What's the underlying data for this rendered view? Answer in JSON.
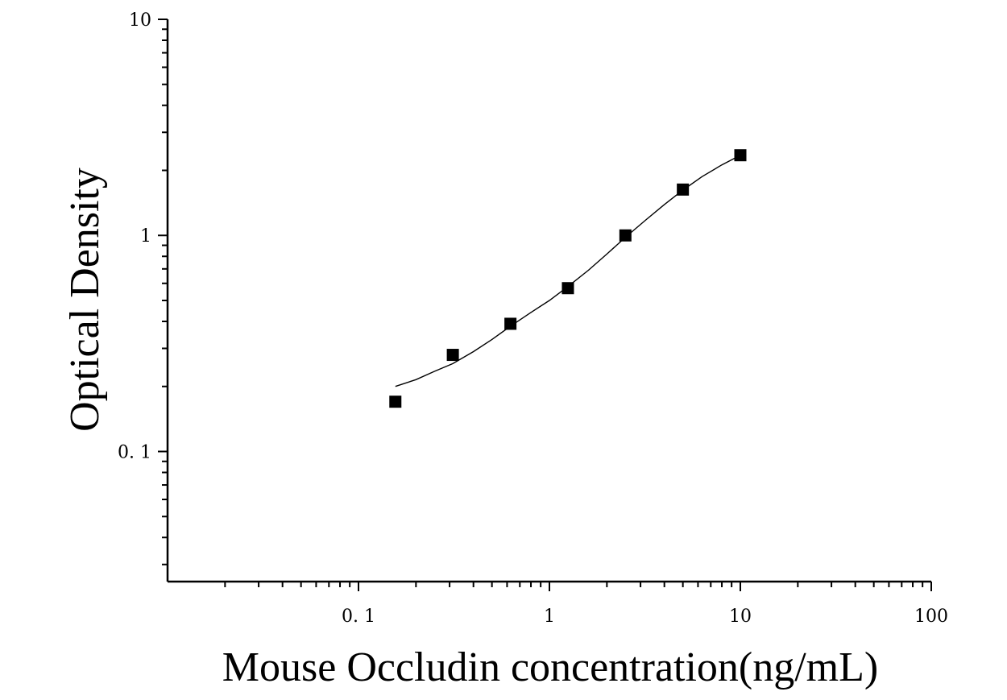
{
  "chart_data": {
    "type": "scatter",
    "title": "",
    "xlabel": "Mouse Occludin concentration(ng/mL)",
    "ylabel": "Optical Density",
    "x_scale": "log",
    "y_scale": "log",
    "xlim": [
      0.01,
      100
    ],
    "ylim": [
      0.025,
      10
    ],
    "x_ticks": [
      {
        "value": 0.1,
        "label": "0. 1"
      },
      {
        "value": 1,
        "label": "1"
      },
      {
        "value": 10,
        "label": "10"
      },
      {
        "value": 100,
        "label": "100"
      }
    ],
    "y_ticks": [
      {
        "value": 0.1,
        "label": "0. 1"
      },
      {
        "value": 1,
        "label": "1"
      },
      {
        "value": 10,
        "label": "10"
      }
    ],
    "grid": false,
    "legend": "none",
    "series": [
      {
        "marker": "square",
        "color": "#000000",
        "x": [
          0.156,
          0.312,
          0.625,
          1.25,
          2.5,
          5,
          10
        ],
        "y": [
          0.17,
          0.28,
          0.39,
          0.57,
          1.0,
          1.63,
          2.35
        ]
      }
    ],
    "fit_curve": {
      "style": "line",
      "color": "#000000",
      "x": [
        0.156,
        0.2,
        0.25,
        0.312,
        0.4,
        0.5,
        0.625,
        0.8,
        1.0,
        1.25,
        1.6,
        2.0,
        2.5,
        3.2,
        4.0,
        5.0,
        6.3,
        8.0,
        10.0
      ],
      "y": [
        0.2,
        0.215,
        0.235,
        0.255,
        0.29,
        0.33,
        0.38,
        0.44,
        0.5,
        0.58,
        0.69,
        0.82,
        0.98,
        1.18,
        1.39,
        1.62,
        1.87,
        2.12,
        2.35
      ]
    }
  }
}
